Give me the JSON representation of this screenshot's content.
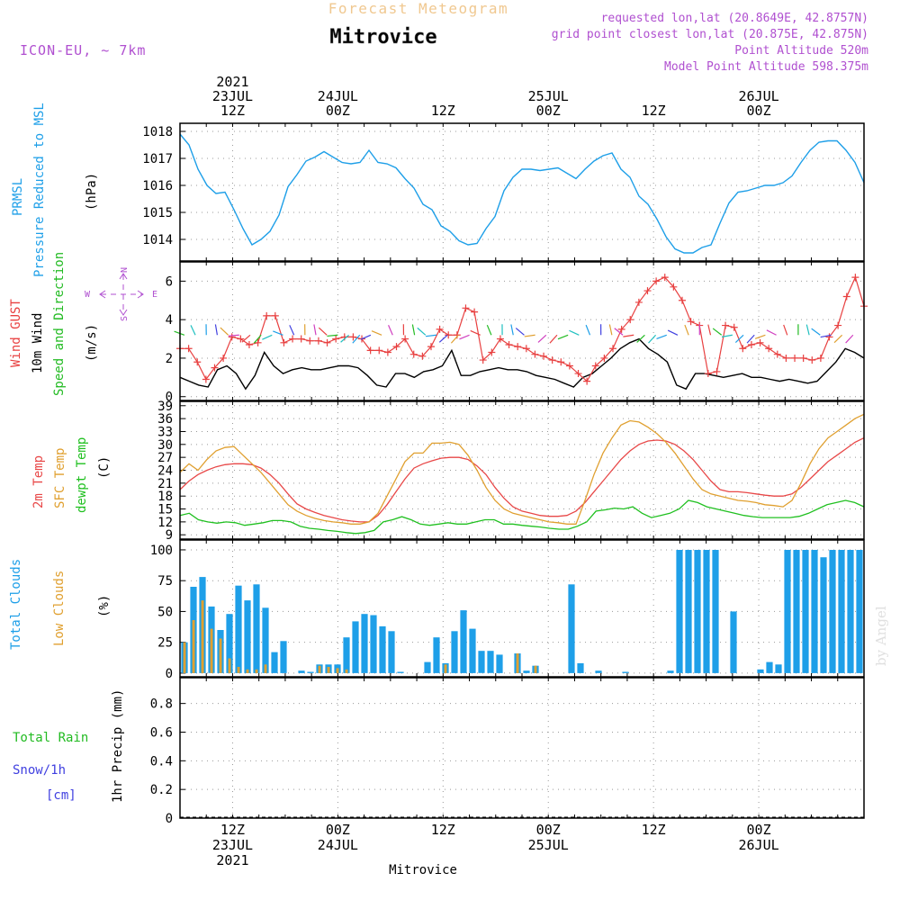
{
  "header": {
    "product": "Forecast Meteogram",
    "location": "Mitrovice",
    "model": "ICON-EU, ~ 7km",
    "requested": "requested lon,lat (20.8649E, 42.8757N)",
    "grid_point": "grid point closest lon,lat (20.875E, 42.875N)",
    "point_altitude": "Point Altitude 520m",
    "model_altitude": "Model Point Altitude 598.375m",
    "watermark": "by Angel",
    "footer_location": "Mitrovice"
  },
  "time_axis": {
    "start": "2021-07-23 06Z",
    "end": "2021-07-26 12Z",
    "step_hours": 1,
    "top_labels": [
      {
        "lines": [
          "2021",
          "23JUL",
          "12Z"
        ],
        "hour": 6
      },
      {
        "lines": [
          "24JUL",
          "00Z"
        ],
        "hour": 18
      },
      {
        "lines": [
          "12Z"
        ],
        "hour": 30
      },
      {
        "lines": [
          "25JUL",
          "00Z"
        ],
        "hour": 42
      },
      {
        "lines": [
          "12Z"
        ],
        "hour": 54
      },
      {
        "lines": [
          "26JUL",
          "00Z"
        ],
        "hour": 66
      }
    ],
    "bottom_labels": [
      {
        "lines": [
          "12Z",
          "23JUL",
          "2021"
        ],
        "hour": 6
      },
      {
        "lines": [
          "00Z",
          "24JUL"
        ],
        "hour": 18
      },
      {
        "lines": [
          "12Z"
        ],
        "hour": 30
      },
      {
        "lines": [
          "00Z",
          "25JUL"
        ],
        "hour": 42
      },
      {
        "lines": [
          "12Z"
        ],
        "hour": 54
      },
      {
        "lines": [
          "00Z",
          "26JUL"
        ],
        "hour": 66
      }
    ]
  },
  "panels": {
    "pressure": {
      "labels": {
        "name1": "PRMSL",
        "name2": "Pressure Reduced to MSL",
        "unit": "(hPa)"
      },
      "colors": {
        "line": "#1e9fe8"
      }
    },
    "wind": {
      "labels": {
        "gust": "Wind GUST",
        "wind": "10m Wind",
        "dir": "Speed and Direction",
        "unit": "(m/s)"
      },
      "compass": {
        "n": "N",
        "s": "S",
        "w": "W",
        "e": "E"
      },
      "colors": {
        "gust": "#e84040",
        "wind": "#000000",
        "label_dir": "#22bb22",
        "compass": "#b050d0"
      }
    },
    "temperature": {
      "labels": {
        "t2m": "2m Temp",
        "sfc": "SFC Temp",
        "dew": "dewpt Temp",
        "unit": "(C)"
      },
      "colors": {
        "t2m": "#e84848",
        "sfc": "#e0a030",
        "dew": "#20c020"
      }
    },
    "clouds": {
      "labels": {
        "total": "Total Clouds",
        "low": "Low Clouds",
        "unit": "(%)"
      },
      "colors": {
        "total": "#1e9fe8",
        "low": "#e0a030"
      }
    },
    "precip": {
      "labels": {
        "rain": "Total Rain",
        "snow": "Snow/1h",
        "cm": "[cm]",
        "unit": "1hr Precip (mm)"
      },
      "colors": {
        "rain": "#22bb22",
        "snow": "#4040e0"
      }
    }
  },
  "chart_data": [
    {
      "type": "line",
      "id": "pressure",
      "ylabel": "(hPa)",
      "ylim": [
        1013.2,
        1018.3
      ],
      "yticks": [
        1014,
        1015,
        1016,
        1017,
        1018
      ],
      "grid": true,
      "series": [
        {
          "name": "PRMSL",
          "values": [
            1017.9,
            1017.5,
            1016.6,
            1016.0,
            1015.7,
            1015.75,
            1015.1,
            1014.4,
            1013.8,
            1014.0,
            1014.3,
            1014.9,
            1015.95,
            1016.4,
            1016.9,
            1017.05,
            1017.25,
            1017.05,
            1016.85,
            1016.8,
            1016.85,
            1017.3,
            1016.85,
            1016.8,
            1016.65,
            1016.25,
            1015.9,
            1015.3,
            1015.1,
            1014.5,
            1014.3,
            1013.95,
            1013.8,
            1013.85,
            1014.4,
            1014.85,
            1015.8,
            1016.3,
            1016.6,
            1016.6,
            1016.55,
            1016.6,
            1016.65,
            1016.45,
            1016.25,
            1016.6,
            1016.9,
            1017.1,
            1017.2,
            1016.6,
            1016.3,
            1015.6,
            1015.3,
            1014.75,
            1014.1,
            1013.65,
            1013.5,
            1013.5,
            1013.7,
            1013.8,
            1014.6,
            1015.35,
            1015.75,
            1015.8,
            1015.9,
            1016.0,
            1016.0,
            1016.1,
            1016.35,
            1016.85,
            1017.3,
            1017.6,
            1017.65,
            1017.65,
            1017.3,
            1016.85,
            1016.1
          ]
        }
      ]
    },
    {
      "type": "line",
      "id": "wind",
      "ylabel": "(m/s)",
      "ylim": [
        -0.2,
        7.0
      ],
      "yticks": [
        0,
        2,
        4,
        6
      ],
      "grid": true,
      "series": [
        {
          "name": "Wind GUST",
          "values": [
            2.5,
            2.5,
            1.8,
            0.9,
            1.5,
            2.0,
            3.1,
            3.0,
            2.7,
            2.8,
            4.2,
            4.2,
            2.8,
            3.0,
            3.0,
            2.9,
            2.9,
            2.8,
            3.0,
            3.1,
            3.1,
            3.0,
            2.4,
            2.4,
            2.3,
            2.6,
            3.0,
            2.2,
            2.1,
            2.6,
            3.5,
            3.2,
            3.2,
            4.6,
            4.4,
            1.9,
            2.3,
            3.0,
            2.7,
            2.6,
            2.5,
            2.2,
            2.1,
            1.9,
            1.8,
            1.6,
            1.2,
            0.8,
            1.6,
            2.0,
            2.5,
            3.5,
            4.0,
            4.9,
            5.5,
            6.0,
            6.2,
            5.7,
            5.0,
            3.9,
            3.7,
            1.2,
            1.3,
            3.7,
            3.6,
            2.5,
            2.7,
            2.8,
            2.5,
            2.2,
            2.0,
            2.0,
            2.0,
            1.9,
            2.0,
            3.1,
            3.7,
            5.2,
            6.2,
            4.7
          ]
        },
        {
          "name": "10m Wind",
          "values": [
            1.0,
            0.8,
            0.6,
            0.5,
            1.4,
            1.6,
            1.2,
            0.4,
            1.1,
            2.3,
            1.6,
            1.2,
            1.4,
            1.5,
            1.4,
            1.4,
            1.5,
            1.6,
            1.6,
            1.5,
            1.1,
            0.6,
            0.5,
            1.2,
            1.2,
            1.0,
            1.3,
            1.4,
            1.6,
            2.4,
            1.1,
            1.1,
            1.3,
            1.4,
            1.5,
            1.4,
            1.4,
            1.3,
            1.1,
            1.0,
            0.9,
            0.7,
            0.5,
            1.0,
            1.2,
            1.6,
            2.0,
            2.5,
            2.8,
            3.0,
            2.5,
            2.2,
            1.8,
            0.6,
            0.4,
            1.2,
            1.2,
            1.1,
            1.0,
            1.1,
            1.2,
            1.0,
            1.0,
            0.9,
            0.8,
            0.9,
            0.8,
            0.7,
            0.8,
            1.3,
            1.8,
            2.5,
            2.3,
            2.0
          ]
        }
      ]
    },
    {
      "type": "line",
      "id": "temperature",
      "ylabel": "(C)",
      "ylim": [
        8,
        40
      ],
      "yticks": [
        9,
        12,
        15,
        18,
        21,
        24,
        27,
        30,
        33,
        36,
        39
      ],
      "grid": true,
      "series": [
        {
          "name": "2m Temp",
          "values": [
            19.5,
            21.5,
            23.0,
            24.0,
            24.8,
            25.3,
            25.5,
            25.5,
            25.3,
            24.5,
            23.0,
            21.0,
            18.5,
            16.2,
            15.0,
            14.2,
            13.5,
            13.0,
            12.5,
            12.2,
            12.0,
            12.0,
            13.5,
            16.0,
            19.0,
            22.0,
            24.5,
            25.5,
            26.2,
            26.8,
            27.0,
            27.0,
            26.5,
            25.0,
            23.0,
            20.0,
            17.5,
            15.5,
            14.5,
            14.0,
            13.5,
            13.3,
            13.3,
            13.5,
            14.5,
            16.5,
            19.0,
            21.5,
            24.0,
            26.5,
            28.5,
            30.0,
            30.8,
            31.0,
            30.8,
            30.0,
            28.5,
            26.5,
            24.0,
            21.5,
            19.5,
            19.0,
            19.0,
            18.8,
            18.5,
            18.2,
            18.0,
            18.0,
            18.5,
            20.0,
            22.0,
            24.0,
            26.0,
            27.5,
            29.0,
            30.5,
            31.5
          ]
        },
        {
          "name": "SFC Temp",
          "values": [
            23.5,
            25.5,
            24.0,
            26.5,
            28.5,
            29.3,
            29.5,
            27.5,
            25.5,
            23.5,
            21.0,
            18.5,
            16.0,
            14.5,
            13.5,
            12.8,
            12.3,
            12.0,
            11.8,
            11.5,
            11.5,
            12.0,
            14.0,
            18.0,
            22.0,
            26.0,
            28.0,
            28.0,
            30.3,
            30.3,
            30.5,
            30.0,
            27.5,
            24.0,
            20.0,
            17.0,
            15.0,
            14.0,
            13.5,
            13.0,
            12.5,
            12.0,
            11.8,
            11.5,
            11.5,
            17.0,
            23.0,
            28.0,
            31.5,
            34.5,
            35.5,
            35.2,
            34.0,
            32.5,
            30.5,
            28.0,
            25.0,
            22.0,
            19.5,
            18.5,
            18.0,
            17.5,
            17.0,
            16.8,
            16.5,
            16.0,
            15.8,
            15.5,
            17.0,
            21.0,
            25.5,
            29.0,
            31.5,
            33.0,
            34.5,
            36.0,
            37.0
          ]
        },
        {
          "name": "dewpt Temp",
          "values": [
            13.5,
            14.0,
            12.5,
            12.0,
            11.7,
            12.0,
            11.8,
            11.2,
            11.5,
            11.8,
            12.3,
            12.3,
            12.0,
            11.0,
            10.5,
            10.3,
            10.0,
            9.8,
            9.5,
            9.3,
            9.5,
            10.0,
            12.0,
            12.5,
            13.2,
            12.5,
            11.5,
            11.2,
            11.5,
            11.8,
            11.5,
            11.5,
            12.0,
            12.5,
            12.5,
            11.5,
            11.5,
            11.2,
            11.0,
            10.8,
            10.5,
            10.3,
            10.3,
            11.0,
            12.0,
            14.5,
            14.8,
            15.2,
            15.0,
            15.5,
            14.0,
            13.0,
            13.5,
            14.0,
            15.0,
            17.0,
            16.5,
            15.5,
            15.0,
            14.5,
            14.0,
            13.5,
            13.2,
            13.0,
            13.0,
            13.0,
            13.0,
            13.3,
            14.0,
            15.0,
            16.0,
            16.5,
            17.0,
            16.5,
            15.5
          ]
        }
      ]
    },
    {
      "type": "bar",
      "id": "clouds",
      "ylabel": "(%)",
      "ylim": [
        -3,
        108
      ],
      "yticks": [
        0,
        25,
        50,
        75,
        100
      ],
      "grid": true,
      "series": [
        {
          "name": "Total Clouds",
          "values": [
            25,
            70,
            78,
            54,
            35,
            48,
            71,
            59,
            72,
            53,
            17,
            26,
            0,
            2,
            1,
            7,
            7,
            7,
            29,
            42,
            48,
            47,
            38,
            34,
            1,
            0,
            0,
            9,
            29,
            8,
            34,
            51,
            36,
            18,
            18,
            15,
            0,
            16,
            2,
            6,
            0,
            0,
            0,
            72,
            8,
            0,
            2,
            0,
            0,
            1,
            0,
            0,
            0,
            0,
            2,
            100,
            100,
            100,
            100,
            100,
            0,
            50,
            0,
            0,
            3,
            9,
            7,
            100,
            100,
            100,
            100,
            94,
            100,
            100,
            100,
            100
          ]
        },
        {
          "name": "Low Clouds",
          "values": [
            25,
            43,
            59,
            36,
            28,
            12,
            5,
            3,
            3,
            7,
            0,
            0,
            0,
            0,
            0,
            6,
            5,
            4,
            3,
            0,
            0,
            0,
            0,
            0,
            0,
            0,
            0,
            0,
            0,
            7,
            0,
            0,
            0,
            0,
            0,
            0,
            0,
            16,
            0,
            6,
            0,
            0,
            0,
            0,
            0,
            0,
            0,
            0,
            0,
            0,
            0,
            0,
            0,
            0,
            0,
            0,
            0,
            0,
            0,
            0,
            0,
            0,
            0,
            0,
            0,
            0,
            0,
            0,
            0,
            0,
            0,
            0,
            0,
            0,
            0,
            0
          ]
        }
      ]
    },
    {
      "type": "bar",
      "id": "precip",
      "ylabel": "1hr Precip (mm)",
      "ylim": [
        0,
        0.98
      ],
      "yticks": [
        0,
        0.2,
        0.4,
        0.6,
        0.8
      ],
      "grid": true,
      "series": [
        {
          "name": "Total Rain",
          "values": []
        },
        {
          "name": "Snow/1h",
          "values": []
        }
      ]
    }
  ]
}
